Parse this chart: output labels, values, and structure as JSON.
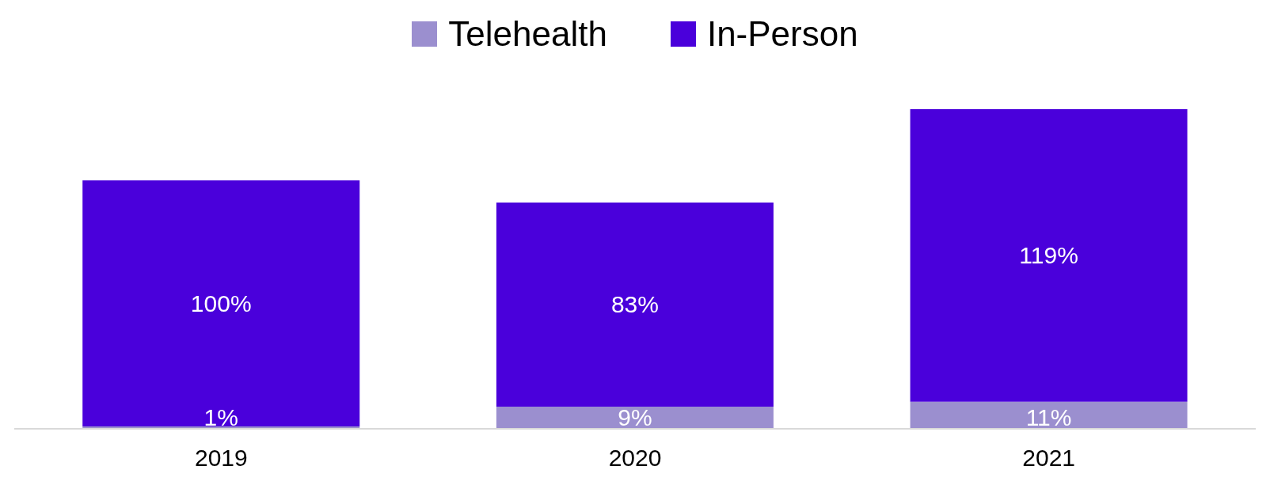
{
  "chart_data": {
    "type": "bar",
    "stacked": true,
    "categories": [
      "2019",
      "2020",
      "2021"
    ],
    "series": [
      {
        "name": "Telehealth",
        "color": "#9b8fcf",
        "values": [
          1,
          9,
          11
        ],
        "value_labels": [
          "1%",
          "9%",
          "11%"
        ]
      },
      {
        "name": "In-Person",
        "color": "#4a00db",
        "values": [
          100,
          83,
          119
        ],
        "value_labels": [
          "100%",
          "83%",
          "119%"
        ]
      }
    ],
    "legend": "top",
    "grid": false
  }
}
